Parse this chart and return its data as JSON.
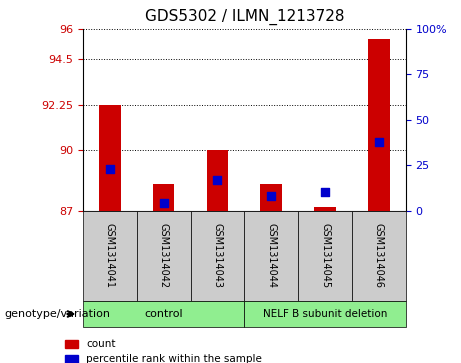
{
  "title": "GDS5302 / ILMN_1213728",
  "samples": [
    "GSM1314041",
    "GSM1314042",
    "GSM1314043",
    "GSM1314044",
    "GSM1314045",
    "GSM1314046"
  ],
  "count_values": [
    92.25,
    88.3,
    90.0,
    88.3,
    87.2,
    95.5
  ],
  "percentile_values": [
    23,
    4,
    17,
    8,
    10,
    38
  ],
  "ymin": 87,
  "ymax": 96,
  "yticks": [
    87,
    90,
    92.25,
    94.5,
    96
  ],
  "ytick_labels": [
    "87",
    "90",
    "92.25",
    "94.5",
    "96"
  ],
  "right_yticks": [
    0,
    25,
    50,
    75,
    100
  ],
  "right_ytick_labels": [
    "0",
    "25",
    "50",
    "75",
    "100%"
  ],
  "groups": [
    {
      "label": "control",
      "indices": [
        0,
        1,
        2
      ],
      "color": "#90EE90"
    },
    {
      "label": "NELF B subunit deletion",
      "indices": [
        3,
        4,
        5
      ],
      "color": "#90EE90"
    }
  ],
  "bar_color": "#CC0000",
  "dot_color": "#0000CC",
  "grid_color": "#000000",
  "bg_color": "#FFFFFF",
  "bar_area_bg": "#FFFFFF",
  "left_label_color": "#CC0000",
  "right_label_color": "#0000CC",
  "xlabel_area_bg": "#CCCCCC",
  "group_area_bg_control": "#90EE90",
  "group_area_bg_nelf": "#90EE90",
  "bar_width": 0.4,
  "dot_size": 40
}
